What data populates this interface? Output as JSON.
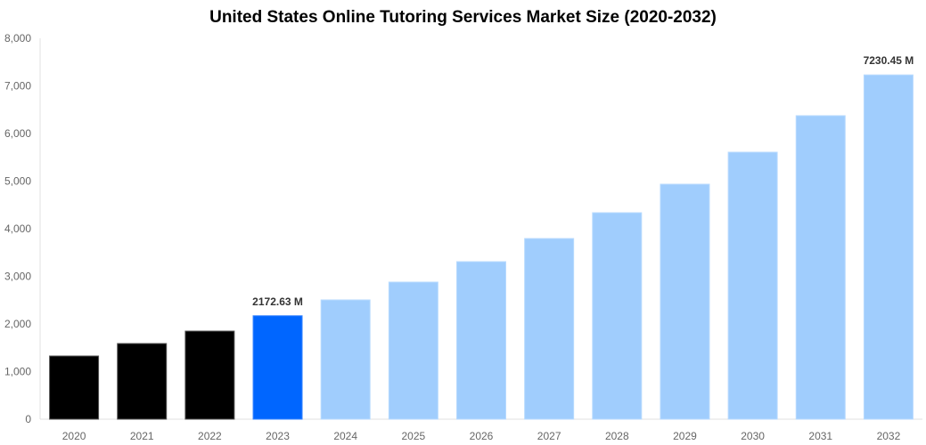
{
  "chart_data": {
    "type": "bar",
    "title": "United States Online Tutoring Services Market Size (2020-2032)",
    "xlabel": "",
    "ylabel": "",
    "ylim": [
      0,
      8000
    ],
    "yticks": [
      0,
      1000,
      2000,
      3000,
      4000,
      5000,
      6000,
      7000,
      8000
    ],
    "ytick_labels": [
      "0",
      "1,000",
      "2,000",
      "3,000",
      "4,000",
      "5,000",
      "6,000",
      "7,000",
      "8,000"
    ],
    "grid": false,
    "legend": null,
    "categories": [
      "2020",
      "2021",
      "2022",
      "2023",
      "2024",
      "2025",
      "2026",
      "2027",
      "2028",
      "2029",
      "2030",
      "2031",
      "2032"
    ],
    "values": [
      1327,
      1589,
      1850,
      2172.63,
      2505,
      2879,
      3308,
      3794,
      4336,
      4935,
      5607,
      6374,
      7230.45
    ],
    "bar_colors": [
      "#000000",
      "#000000",
      "#000000",
      "#0066ff",
      "#a0cdfd",
      "#a0cdfd",
      "#a0cdfd",
      "#a0cdfd",
      "#a0cdfd",
      "#a0cdfd",
      "#a0cdfd",
      "#a0cdfd",
      "#a0cdfd"
    ],
    "annotations": [
      {
        "category": "2023",
        "text": "2172.63 M"
      },
      {
        "category": "2032",
        "text": "7230.45 M"
      }
    ]
  }
}
